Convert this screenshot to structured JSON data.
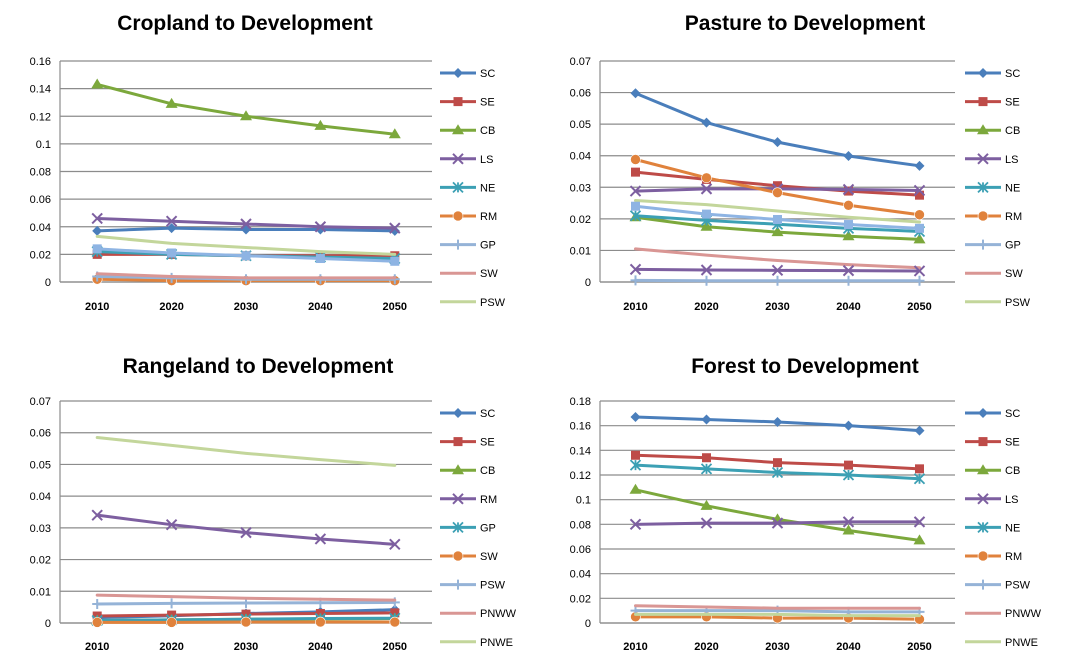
{
  "chart_data": [
    {
      "type": "line",
      "title": "Cropland to Development",
      "x": [
        "2010",
        "2020",
        "2030",
        "2040",
        "2050"
      ],
      "ylim": [
        0,
        0.16
      ],
      "yticks": [
        "0",
        "0.02",
        "0.04",
        "0.06",
        "0.08",
        "0.1",
        "0.12",
        "0.14",
        "0.16"
      ],
      "grid": true,
      "legend": "right",
      "series": [
        {
          "name": "SC",
          "color": "#4a7ebb",
          "marker": "diamond",
          "values": [
            0.037,
            0.039,
            0.038,
            0.038,
            0.037
          ]
        },
        {
          "name": "SE",
          "color": "#be4b48",
          "marker": "square",
          "values": [
            0.02,
            0.02,
            0.019,
            0.019,
            0.019
          ]
        },
        {
          "name": "CB",
          "color": "#7ca83c",
          "marker": "triangle",
          "values": [
            0.143,
            0.129,
            0.12,
            0.113,
            0.107
          ]
        },
        {
          "name": "LS",
          "color": "#7d5fa0",
          "marker": "x",
          "values": [
            0.046,
            0.044,
            0.042,
            0.04,
            0.039
          ]
        },
        {
          "name": "NE",
          "color": "#3ca0b4",
          "marker": "asterisk",
          "values": [
            0.022,
            0.02,
            0.019,
            0.018,
            0.017
          ]
        },
        {
          "name": "RM",
          "color": "#e0823c",
          "marker": "circle",
          "values": [
            0.002,
            0.001,
            0.001,
            0.001,
            0.001
          ]
        },
        {
          "name": "GP",
          "color": "#95b3d7",
          "marker": "plus",
          "values": [
            0.004,
            0.003,
            0.002,
            0.002,
            0.002
          ]
        },
        {
          "name": "SW",
          "color": "#d99694",
          "marker": "none",
          "values": [
            0.006,
            0.004,
            0.003,
            0.003,
            0.003
          ]
        },
        {
          "name": "PSW",
          "color": "#c3d69b",
          "marker": "none",
          "values": [
            0.033,
            0.028,
            0.025,
            0.022,
            0.02
          ]
        },
        {
          "name": "",
          "color": "#8eb4e3",
          "marker": "square",
          "values": [
            0.024,
            0.021,
            0.019,
            0.017,
            0.015
          ]
        }
      ]
    },
    {
      "type": "line",
      "title": "Pasture to Development",
      "x": [
        "2010",
        "2020",
        "2030",
        "2040",
        "2050"
      ],
      "ylim": [
        0,
        0.07
      ],
      "yticks": [
        "0",
        "0.01",
        "0.02",
        "0.03",
        "0.04",
        "0.05",
        "0.06",
        "0.07"
      ],
      "grid": true,
      "legend": "right",
      "series": [
        {
          "name": "SC",
          "color": "#4a7ebb",
          "marker": "diamond",
          "values": [
            0.0598,
            0.0505,
            0.0443,
            0.0399,
            0.0368
          ]
        },
        {
          "name": "SE",
          "color": "#be4b48",
          "marker": "square",
          "values": [
            0.0348,
            0.0325,
            0.0305,
            0.0288,
            0.0275
          ]
        },
        {
          "name": "CB",
          "color": "#7ca83c",
          "marker": "triangle",
          "values": [
            0.0205,
            0.0175,
            0.0158,
            0.0145,
            0.0135
          ]
        },
        {
          "name": "LS",
          "color": "#7d5fa0",
          "marker": "x",
          "values": [
            0.0288,
            0.0295,
            0.0295,
            0.0293,
            0.029
          ]
        },
        {
          "name": "NE",
          "color": "#3ca0b4",
          "marker": "asterisk",
          "values": [
            0.021,
            0.0195,
            0.0183,
            0.017,
            0.016
          ]
        },
        {
          "name": "RM",
          "color": "#e0823c",
          "marker": "circle",
          "values": [
            0.0388,
            0.033,
            0.0283,
            0.0243,
            0.0213
          ]
        },
        {
          "name": "GP",
          "color": "#95b3d7",
          "marker": "plus",
          "values": [
            0.0005,
            0.0004,
            0.0004,
            0.0004,
            0.0004
          ]
        },
        {
          "name": "SW",
          "color": "#d99694",
          "marker": "none",
          "values": [
            0.0105,
            0.0085,
            0.0068,
            0.0055,
            0.0045
          ]
        },
        {
          "name": "PSW",
          "color": "#c3d69b",
          "marker": "none",
          "values": [
            0.0258,
            0.0245,
            0.0225,
            0.0205,
            0.019
          ]
        },
        {
          "name": "",
          "color": "#7d5fa0",
          "marker": "x",
          "values": [
            0.004,
            0.0038,
            0.0037,
            0.0036,
            0.0035
          ]
        },
        {
          "name": "",
          "color": "#8eb4e3",
          "marker": "square",
          "values": [
            0.024,
            0.0215,
            0.0198,
            0.0182,
            0.017
          ]
        }
      ]
    },
    {
      "type": "line",
      "title": "Rangeland to Development",
      "x": [
        "2010",
        "2020",
        "2030",
        "2040",
        "2050"
      ],
      "ylim": [
        0,
        0.07
      ],
      "yticks": [
        "0",
        "0.01",
        "0.02",
        "0.03",
        "0.04",
        "0.05",
        "0.06",
        "0.07"
      ],
      "grid": true,
      "legend": "right",
      "series": [
        {
          "name": "SC",
          "color": "#4a7ebb",
          "marker": "diamond",
          "values": [
            0.0017,
            0.0023,
            0.003,
            0.0035,
            0.0042
          ]
        },
        {
          "name": "SE",
          "color": "#be4b48",
          "marker": "square",
          "values": [
            0.0022,
            0.0025,
            0.0028,
            0.003,
            0.0032
          ]
        },
        {
          "name": "CB",
          "color": "#7ca83c",
          "marker": "triangle",
          "values": [
            0.0008,
            0.001,
            0.0012,
            0.0013,
            0.0014
          ]
        },
        {
          "name": "RM",
          "color": "#7d5fa0",
          "marker": "x",
          "values": [
            0.034,
            0.031,
            0.0285,
            0.0265,
            0.0248
          ]
        },
        {
          "name": "GP",
          "color": "#3ca0b4",
          "marker": "asterisk",
          "values": [
            0.0008,
            0.001,
            0.0012,
            0.0014,
            0.0015
          ]
        },
        {
          "name": "SW",
          "color": "#e0823c",
          "marker": "circle",
          "values": [
            0.0002,
            0.0002,
            0.0003,
            0.0003,
            0.0003
          ]
        },
        {
          "name": "PSW",
          "color": "#95b3d7",
          "marker": "plus",
          "values": [
            0.006,
            0.0062,
            0.0063,
            0.0064,
            0.0065
          ]
        },
        {
          "name": "PNWW",
          "color": "#d99694",
          "marker": "none",
          "values": [
            0.0088,
            0.0083,
            0.0078,
            0.0075,
            0.0072
          ]
        },
        {
          "name": "PNWE",
          "color": "#c3d69b",
          "marker": "none",
          "values": [
            0.0585,
            0.056,
            0.0535,
            0.0515,
            0.0497
          ]
        }
      ]
    },
    {
      "type": "line",
      "title": "Forest to Development",
      "x": [
        "2010",
        "2020",
        "2030",
        "2040",
        "2050"
      ],
      "ylim": [
        0,
        0.18
      ],
      "yticks": [
        "0",
        "0.02",
        "0.04",
        "0.06",
        "0.08",
        "0.1",
        "0.12",
        "0.14",
        "0.16",
        "0.18"
      ],
      "grid": true,
      "legend": "right",
      "series": [
        {
          "name": "SC",
          "color": "#4a7ebb",
          "marker": "diamond",
          "values": [
            0.167,
            0.165,
            0.163,
            0.16,
            0.156
          ]
        },
        {
          "name": "SE",
          "color": "#be4b48",
          "marker": "square",
          "values": [
            0.136,
            0.134,
            0.13,
            0.128,
            0.125
          ]
        },
        {
          "name": "CB",
          "color": "#7ca83c",
          "marker": "triangle",
          "values": [
            0.108,
            0.095,
            0.084,
            0.075,
            0.067
          ]
        },
        {
          "name": "LS",
          "color": "#7d5fa0",
          "marker": "x",
          "values": [
            0.08,
            0.081,
            0.081,
            0.082,
            0.082
          ]
        },
        {
          "name": "NE",
          "color": "#3ca0b4",
          "marker": "asterisk",
          "values": [
            0.128,
            0.125,
            0.122,
            0.12,
            0.117
          ]
        },
        {
          "name": "RM",
          "color": "#e0823c",
          "marker": "circle",
          "values": [
            0.005,
            0.005,
            0.004,
            0.004,
            0.003
          ]
        },
        {
          "name": "PSW",
          "color": "#95b3d7",
          "marker": "plus",
          "values": [
            0.01,
            0.01,
            0.01,
            0.009,
            0.009
          ]
        },
        {
          "name": "PNWW",
          "color": "#d99694",
          "marker": "none",
          "values": [
            0.014,
            0.013,
            0.012,
            0.012,
            0.012
          ]
        },
        {
          "name": "PNWE",
          "color": "#c3d69b",
          "marker": "none",
          "values": [
            0.007,
            0.007,
            0.007,
            0.006,
            0.006
          ]
        }
      ]
    }
  ]
}
